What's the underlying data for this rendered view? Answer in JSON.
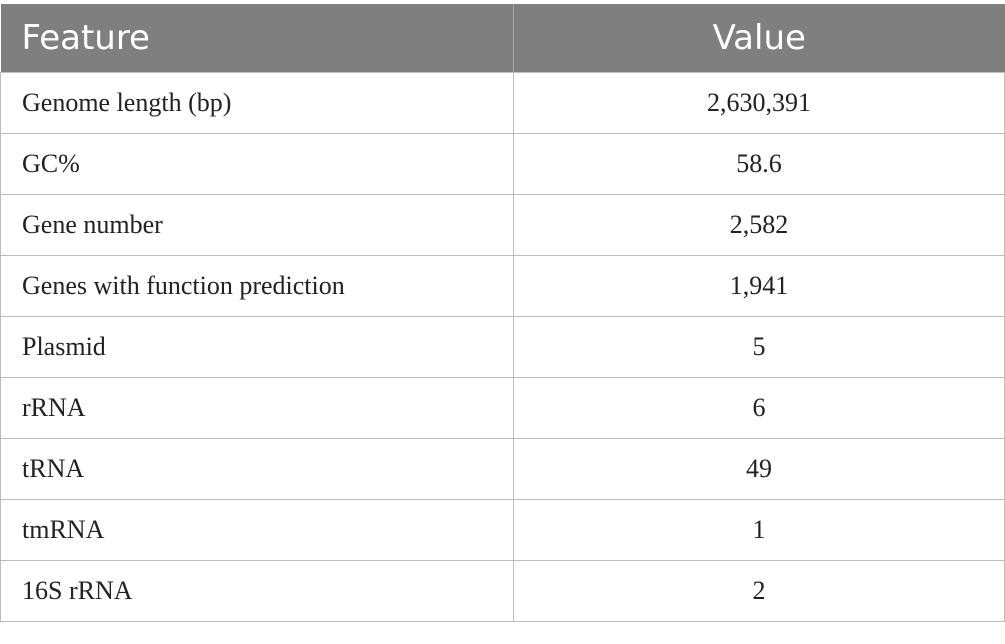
{
  "table": {
    "headers": {
      "feature": "Feature",
      "value": "Value"
    },
    "rows": [
      {
        "feature": "Genome length (bp)",
        "value": "2,630,391"
      },
      {
        "feature": "GC%",
        "value": "58.6"
      },
      {
        "feature": "Gene number",
        "value": "2,582"
      },
      {
        "feature": "Genes with function prediction",
        "value": "1,941"
      },
      {
        "feature": "Plasmid",
        "value": "5"
      },
      {
        "feature": "rRNA",
        "value": "6"
      },
      {
        "feature": "tRNA",
        "value": "49"
      },
      {
        "feature": "tmRNA",
        "value": "1"
      },
      {
        "feature": "16S rRNA",
        "value": "2"
      }
    ]
  },
  "colors": {
    "header_bg": "#7f7f7f",
    "header_text": "#ffffff",
    "border": "#bcbcbc",
    "body_text": "#222222"
  }
}
